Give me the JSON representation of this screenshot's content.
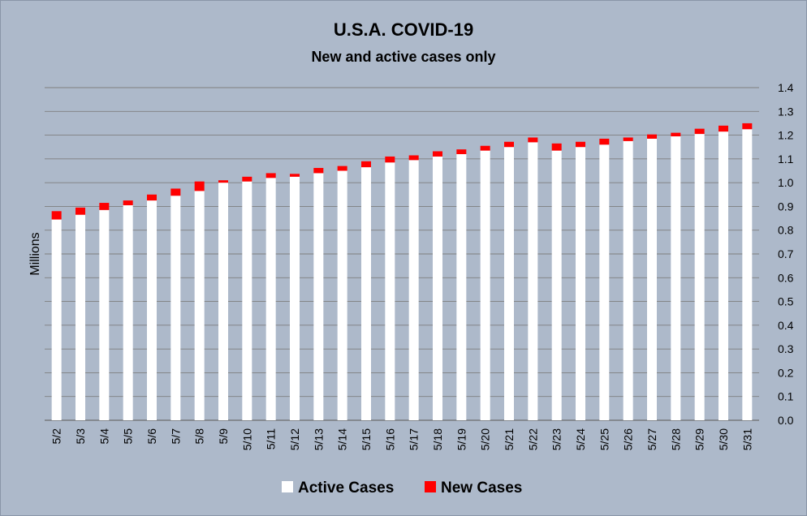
{
  "chart_data": {
    "type": "bar",
    "stacked": true,
    "title": "U.S.A. COVID-19",
    "subtitle": "New and active cases only",
    "ylabel": "Millions",
    "xlabel": "",
    "ylim": [
      0,
      1.4
    ],
    "yticks": [
      "0.0",
      "0.1",
      "0.2",
      "0.3",
      "0.4",
      "0.5",
      "0.6",
      "0.7",
      "0.8",
      "0.9",
      "1.0",
      "1.1",
      "1.2",
      "1.3",
      "1.4"
    ],
    "y_axis_side": "right",
    "grid": true,
    "legend_position": "bottom",
    "categories": [
      "5/2",
      "5/3",
      "5/4",
      "5/5",
      "5/6",
      "5/7",
      "5/8",
      "5/9",
      "5/10",
      "5/11",
      "5/12",
      "5/13",
      "5/14",
      "5/15",
      "5/16",
      "5/17",
      "5/18",
      "5/19",
      "5/20",
      "5/21",
      "5/22",
      "5/23",
      "5/24",
      "5/25",
      "5/26",
      "5/27",
      "5/28",
      "5/29",
      "5/30",
      "5/31"
    ],
    "series": [
      {
        "name": "Active Cases",
        "color": "#ffffff",
        "values": [
          0.845,
          0.865,
          0.885,
          0.905,
          0.925,
          0.945,
          0.965,
          1.0,
          1.005,
          1.02,
          1.025,
          1.04,
          1.05,
          1.065,
          1.085,
          1.095,
          1.11,
          1.12,
          1.135,
          1.15,
          1.17,
          1.135,
          1.15,
          1.16,
          1.175,
          1.185,
          1.195,
          1.205,
          1.215,
          1.225
        ]
      },
      {
        "name": "New Cases",
        "color": "#ff0000",
        "values": [
          0.035,
          0.03,
          0.03,
          0.02,
          0.025,
          0.03,
          0.04,
          0.01,
          0.02,
          0.02,
          0.012,
          0.022,
          0.02,
          0.025,
          0.025,
          0.02,
          0.022,
          0.02,
          0.02,
          0.022,
          0.02,
          0.03,
          0.022,
          0.025,
          0.015,
          0.018,
          0.015,
          0.022,
          0.025,
          0.025
        ]
      }
    ]
  }
}
